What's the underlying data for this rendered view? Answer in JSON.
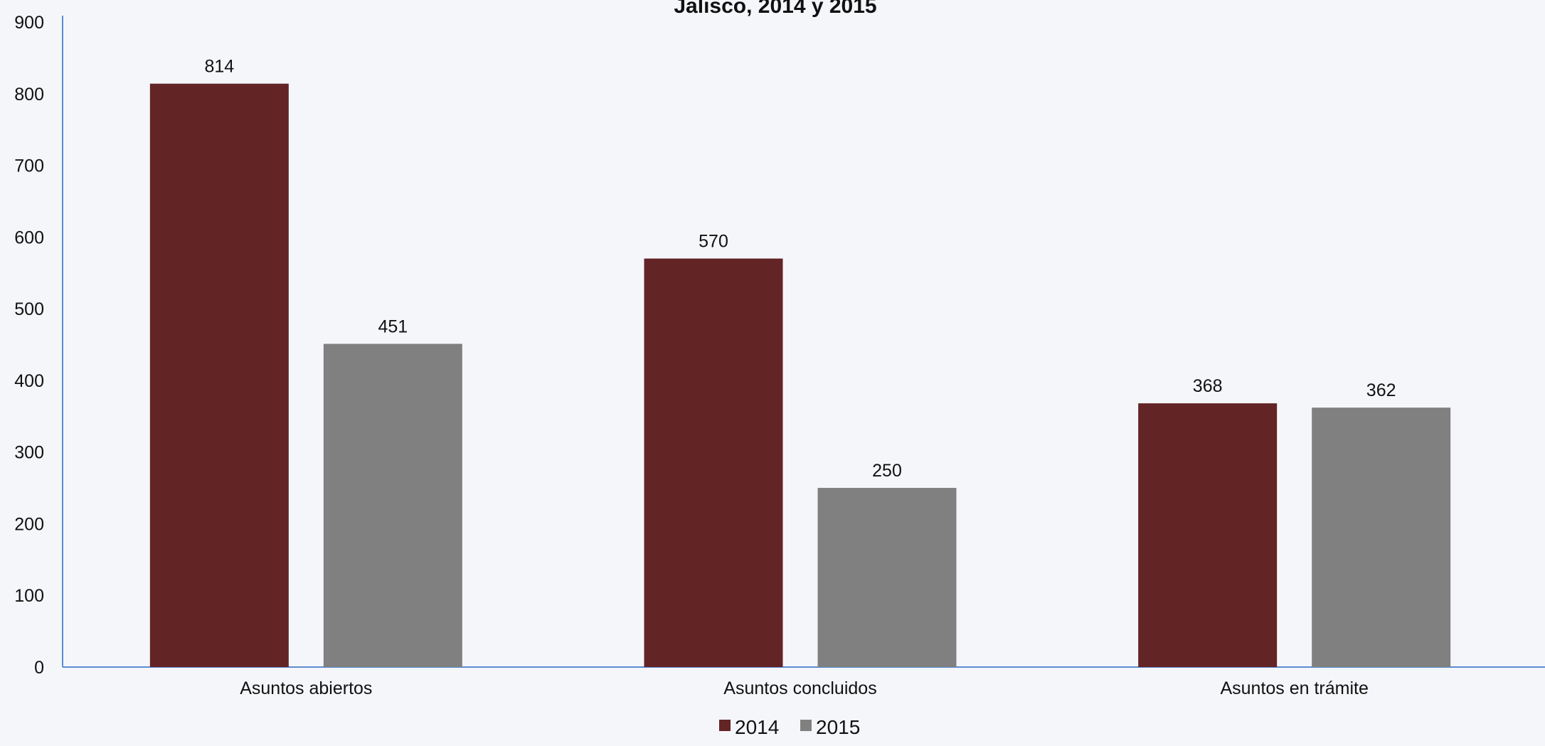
{
  "chart_data": {
    "type": "bar",
    "title": "Jalisco, 2014 y 2015",
    "xlabel": "",
    "ylabel": "",
    "ylim": [
      0,
      900
    ],
    "yticks": [
      0,
      100,
      200,
      300,
      400,
      500,
      600,
      700,
      800,
      900
    ],
    "categories": [
      "Asuntos abiertos",
      "Asuntos concluidos",
      "Asuntos en trámite"
    ],
    "series": [
      {
        "name": "2014",
        "color": "#632426",
        "values": [
          814,
          570,
          368
        ]
      },
      {
        "name": "2015",
        "color": "#808080",
        "values": [
          451,
          250,
          362
        ]
      }
    ],
    "grid": false,
    "legend": "bottom",
    "data_labels": true
  }
}
